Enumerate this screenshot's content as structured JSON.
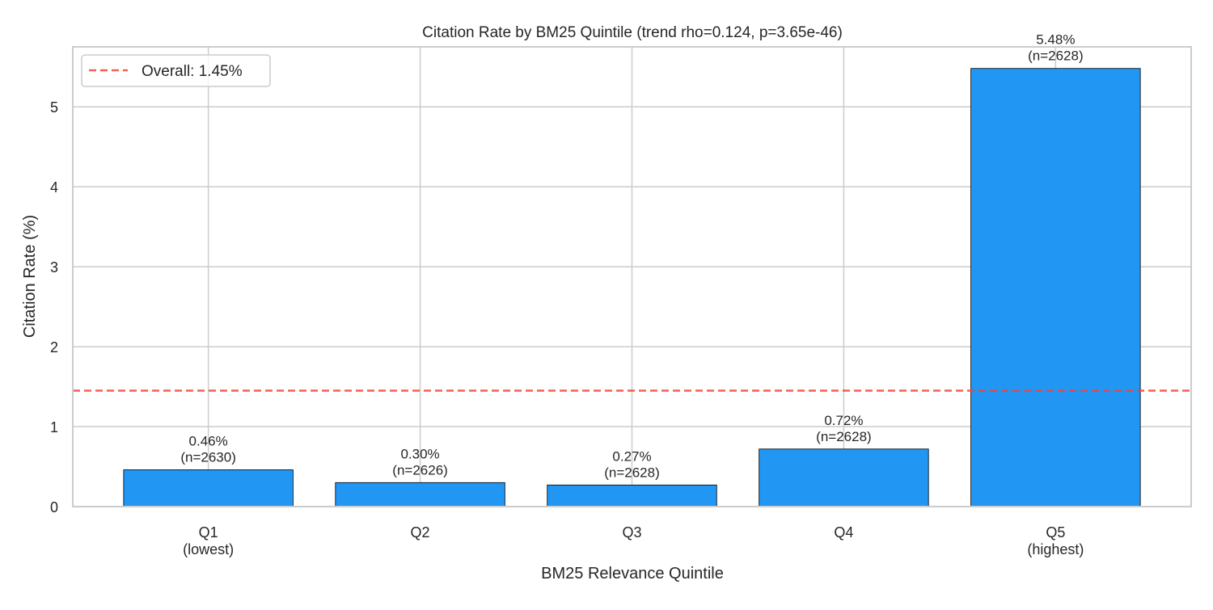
{
  "chart_data": {
    "type": "bar",
    "title": "Citation Rate by BM25 Quintile (trend rho=0.124, p=3.65e-46)",
    "xlabel": "BM25 Relevance Quintile",
    "ylabel": "Citation Rate (%)",
    "categories": [
      "Q1\n(lowest)",
      "Q2",
      "Q3",
      "Q4",
      "Q5\n(highest)"
    ],
    "values": [
      0.46,
      0.3,
      0.27,
      0.72,
      5.48
    ],
    "data_labels": [
      "0.46%\n(n=2630)",
      "0.30%\n(n=2626)",
      "0.27%\n(n=2628)",
      "0.72%\n(n=2628)",
      "5.48%\n(n=2628)"
    ],
    "ylim": [
      0,
      5.75
    ],
    "yticks": [
      0,
      1,
      2,
      3,
      4,
      5
    ],
    "grid": true,
    "bar_color": "#2196F3",
    "reference_line": {
      "value": 1.45,
      "label": "Overall: 1.45%",
      "color": "#F44336",
      "style": "dashed"
    },
    "legend_placement": "top-left"
  }
}
